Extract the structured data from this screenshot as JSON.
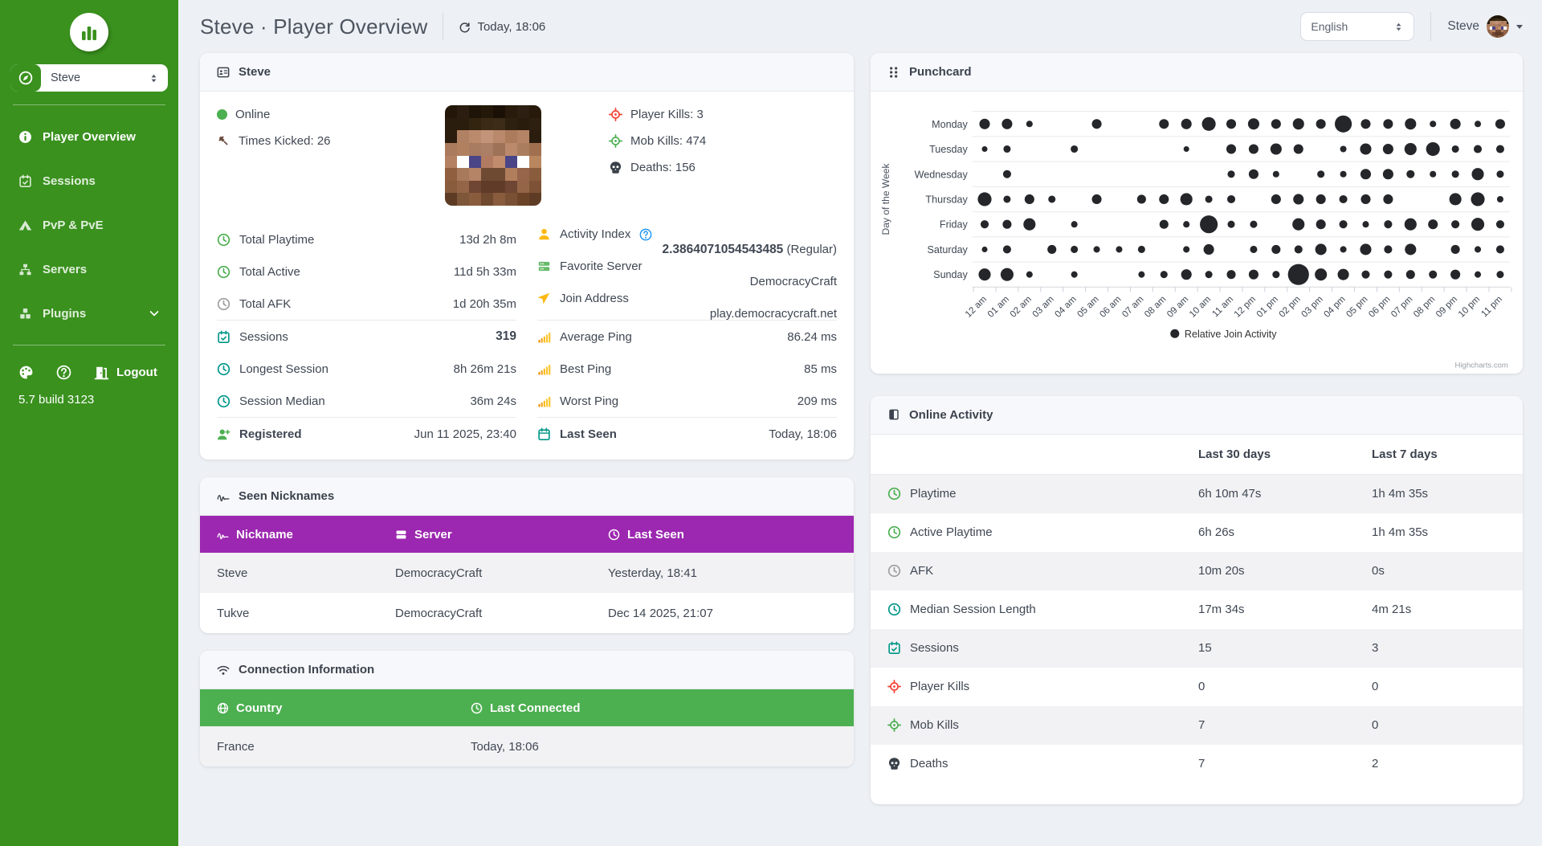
{
  "colors": {
    "sidebar_green": "#3a911e",
    "nickname_header_purple": "#9c27b0",
    "connection_header_green": "#4caf50",
    "punchcard_dot": "#24262a",
    "online_green": "#4caf50",
    "player_kills_red": "#f44336",
    "mob_kills_green": "#4caf50",
    "ping_yellow": "#fdb913"
  },
  "sidebar": {
    "player_select_value": "Steve",
    "nav": [
      {
        "label": "Player Overview"
      },
      {
        "label": "Sessions"
      },
      {
        "label": "PvP & PvE"
      },
      {
        "label": "Servers"
      },
      {
        "label": "Plugins"
      }
    ],
    "logout": "Logout",
    "version": "5.7 build 3123"
  },
  "header": {
    "title": "Steve · Player Overview",
    "refreshed": "Today, 18:06",
    "language": "English",
    "username": "Steve"
  },
  "player_card": {
    "title": "Steve",
    "online": "Online",
    "times_kicked_label": "Times Kicked:",
    "times_kicked": "26",
    "player_kills_label": "Player Kills:",
    "player_kills": "3",
    "mob_kills_label": "Mob Kills:",
    "mob_kills": "474",
    "deaths_label": "Deaths:",
    "deaths": "156",
    "rows_left": {
      "total_playtime": {
        "label": "Total Playtime",
        "value": "13d 2h 8m"
      },
      "total_active": {
        "label": "Total Active",
        "value": "11d 5h 33m"
      },
      "total_afk": {
        "label": "Total AFK",
        "value": "1d 20h 35m"
      },
      "sessions": {
        "label": "Sessions",
        "value": "319"
      },
      "longest_session": {
        "label": "Longest Session",
        "value": "8h 26m 21s"
      },
      "session_median": {
        "label": "Session Median",
        "value": "36m 24s"
      },
      "registered": {
        "label": "Registered",
        "value": "Jun 11 2025, 23:40"
      }
    },
    "rows_right": {
      "activity_index": {
        "label": "Activity Index",
        "value": "2.3864071054543485",
        "suffix": " (Regular)"
      },
      "favorite_server": {
        "label": "Favorite Server",
        "value": "DemocracyCraft"
      },
      "join_address": {
        "label": "Join Address",
        "value": "play.democracycraft.net"
      },
      "average_ping": {
        "label": "Average Ping",
        "value": "86.24 ms"
      },
      "best_ping": {
        "label": "Best Ping",
        "value": "85 ms"
      },
      "worst_ping": {
        "label": "Worst Ping",
        "value": "209 ms"
      },
      "last_seen": {
        "label": "Last Seen",
        "value": "Today, 18:06"
      }
    }
  },
  "nicknames_card": {
    "title": "Seen Nicknames",
    "columns": [
      "Nickname",
      "Server",
      "Last Seen"
    ],
    "rows": [
      [
        "Steve",
        "DemocracyCraft",
        "Yesterday, 18:41"
      ],
      [
        "Tukve",
        "DemocracyCraft",
        "Dec 14 2025, 21:07"
      ]
    ]
  },
  "connection_card": {
    "title": "Connection Information",
    "columns": [
      "Country",
      "Last Connected"
    ],
    "rows": [
      [
        "France",
        "Today, 18:06"
      ]
    ]
  },
  "punchcard_card": {
    "title": "Punchcard"
  },
  "chart_data": {
    "type": "scatter",
    "title": "Punchcard",
    "x_categories": [
      "12 am",
      "01 am",
      "02 am",
      "03 am",
      "04 am",
      "05 am",
      "06 am",
      "07 am",
      "08 am",
      "09 am",
      "10 am",
      "11 am",
      "12 pm",
      "01 pm",
      "02 pm",
      "03 pm",
      "04 pm",
      "05 pm",
      "06 pm",
      "07 pm",
      "08 pm",
      "09 pm",
      "10 pm",
      "11 pm"
    ],
    "y_categories": [
      "Monday",
      "Tuesday",
      "Wednesday",
      "Thursday",
      "Friday",
      "Saturday",
      "Sunday"
    ],
    "y_axis_label": "Day of the Week",
    "legend": "Relative Join Activity",
    "credit": "Highcharts.com",
    "series_note": "values are relative dot diameters in px, 0 = no joins that hour",
    "series": [
      {
        "name": "Monday",
        "sizes": [
          13,
          13,
          8,
          0,
          0,
          12,
          0,
          0,
          12,
          13,
          17,
          12,
          14,
          12,
          14,
          12,
          21,
          12,
          12,
          14,
          8,
          13,
          8,
          12
        ]
      },
      {
        "name": "Tuesday",
        "sizes": [
          7,
          9,
          0,
          0,
          9,
          0,
          0,
          0,
          0,
          7,
          0,
          12,
          12,
          14,
          12,
          0,
          8,
          14,
          13,
          15,
          17,
          9,
          10,
          10
        ]
      },
      {
        "name": "Wednesday",
        "sizes": [
          0,
          10,
          0,
          0,
          0,
          0,
          0,
          0,
          0,
          0,
          0,
          9,
          12,
          8,
          0,
          9,
          8,
          13,
          13,
          10,
          8,
          9,
          15,
          9
        ]
      },
      {
        "name": "Thursday",
        "sizes": [
          17,
          9,
          12,
          9,
          0,
          12,
          0,
          11,
          12,
          15,
          9,
          10,
          0,
          12,
          13,
          12,
          10,
          12,
          12,
          0,
          0,
          15,
          17,
          8
        ]
      },
      {
        "name": "Friday",
        "sizes": [
          10,
          11,
          15,
          0,
          8,
          0,
          0,
          0,
          11,
          8,
          22,
          9,
          9,
          0,
          15,
          12,
          10,
          8,
          10,
          15,
          12,
          10,
          16,
          10
        ]
      },
      {
        "name": "Saturday",
        "sizes": [
          7,
          10,
          0,
          11,
          9,
          8,
          8,
          9,
          0,
          8,
          13,
          0,
          9,
          11,
          10,
          14,
          8,
          14,
          10,
          14,
          0,
          11,
          8,
          10
        ]
      },
      {
        "name": "Sunday",
        "sizes": [
          15,
          16,
          8,
          0,
          8,
          0,
          0,
          8,
          9,
          13,
          9,
          11,
          12,
          9,
          26,
          15,
          14,
          10,
          10,
          11,
          10,
          12,
          8,
          9
        ]
      }
    ]
  },
  "online_activity": {
    "title": "Online Activity",
    "col_30": "Last 30 days",
    "col_7": "Last 7 days",
    "rows": [
      {
        "label": "Playtime",
        "d30": "6h 10m 47s",
        "d7": "1h 4m 35s"
      },
      {
        "label": "Active Playtime",
        "d30": "6h 26s",
        "d7": "1h 4m 35s"
      },
      {
        "label": "AFK",
        "d30": "10m 20s",
        "d7": "0s"
      },
      {
        "label": "Median Session Length",
        "d30": "17m 34s",
        "d7": "4m 21s"
      },
      {
        "label": "Sessions",
        "d30": "15",
        "d7": "3"
      },
      {
        "label": "Player Kills",
        "d30": "0",
        "d7": "0"
      },
      {
        "label": "Mob Kills",
        "d30": "7",
        "d7": "0"
      },
      {
        "label": "Deaths",
        "d30": "7",
        "d7": "2"
      }
    ]
  },
  "avatar": {
    "pixels": [
      [
        "#231709",
        "#2b1e10",
        "#1f1408",
        "#241808",
        "#1b1005",
        "#281b0c",
        "#2d2012",
        "#271a0b"
      ],
      [
        "#2a1d0e",
        "#2a1d0e",
        "#32240f",
        "#3b2b15",
        "#3d2c17",
        "#2d200e",
        "#2a1c0c",
        "#2e2011"
      ],
      [
        "#2a1d0e",
        "#b08162",
        "#bb8a6d",
        "#c39479",
        "#ba886a",
        "#ac7b5c",
        "#b58366",
        "#2a1d0e"
      ],
      [
        "#aa7b5c",
        "#b0805f",
        "#a87c60",
        "#ab7f66",
        "#9e7257",
        "#bb8a6d",
        "#a97d5e",
        "#a06f4f"
      ],
      [
        "#b48263",
        "#ffffff",
        "#4a4587",
        "#b07b60",
        "#c18c6e",
        "#4a4587",
        "#ffffff",
        "#b8865f"
      ],
      [
        "#8f5f3f",
        "#a9795b",
        "#b58365",
        "#6f4a33",
        "#6f4a33",
        "#b07e5c",
        "#96654a",
        "#8a5c3e"
      ],
      [
        "#8a5c3e",
        "#946547",
        "#6f4533",
        "#5f3b28",
        "#5f3b28",
        "#6f4533",
        "#946547",
        "#7e5236"
      ],
      [
        "#5d3b24",
        "#7e5639",
        "#8a5c3e",
        "#6f4a2e",
        "#8a5c3e",
        "#7a5034",
        "#6b4427",
        "#5d3b24"
      ]
    ]
  }
}
